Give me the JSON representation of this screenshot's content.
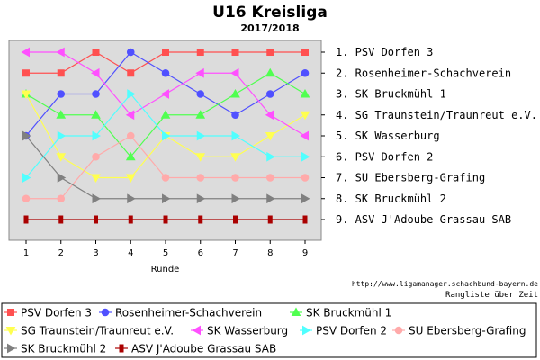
{
  "chart_data": {
    "type": "line",
    "title": "U16 Kreisliga",
    "subtitle": "2017/2018",
    "xlabel": "Runde",
    "ylabel": "",
    "x": [
      1,
      2,
      3,
      4,
      5,
      6,
      7,
      8,
      9
    ],
    "ylim": [
      1,
      9
    ],
    "y_inverted": true,
    "grid": false,
    "background": "#dcdcdc",
    "ranking": [
      "1. PSV Dorfen 3",
      "2. Rosenheimer-Schachverein",
      "3. SK Bruckmühl 1",
      "4. SG Traunstein/Traunreut e.V.",
      "5. SK Wasserburg",
      "6. PSV Dorfen 2",
      "7. SU Ebersberg-Grafing",
      "8. SK Bruckmühl  2",
      "9. ASV J'Adoube Grassau SAB"
    ],
    "source_url": "http://www.ligamanager.schachbund-bayern.de",
    "caption": "Rangliste über Zeit",
    "legend_position": "bottom",
    "series": [
      {
        "name": "PSV Dorfen 3",
        "color": "#ff5050",
        "marker": "square",
        "values": [
          2,
          2,
          1,
          2,
          1,
          1,
          1,
          1,
          1
        ]
      },
      {
        "name": "Rosenheimer-Schachverein",
        "color": "#5050ff",
        "marker": "circle",
        "values": [
          5,
          3,
          3,
          1,
          2,
          3,
          4,
          3,
          2
        ]
      },
      {
        "name": "SK Bruckmühl 1",
        "color": "#50ff50",
        "marker": "triangle-up",
        "values": [
          3,
          4,
          4,
          6,
          4,
          4,
          3,
          2,
          3
        ]
      },
      {
        "name": "SG Traunstein/Traunreut e.V.",
        "color": "#ffff50",
        "marker": "triangle-down",
        "values": [
          3,
          6,
          7,
          7,
          5,
          6,
          6,
          5,
          4
        ]
      },
      {
        "name": "SK Wasserburg",
        "color": "#ff50ff",
        "marker": "triangle-left",
        "values": [
          1,
          1,
          2,
          4,
          3,
          2,
          2,
          4,
          5
        ]
      },
      {
        "name": "PSV Dorfen 2",
        "color": "#50ffff",
        "marker": "triangle-right",
        "values": [
          7,
          5,
          5,
          3,
          5,
          5,
          5,
          6,
          6
        ]
      },
      {
        "name": "SU Ebersberg-Grafing",
        "color": "#ffaaaa",
        "marker": "circle",
        "values": [
          8,
          8,
          6,
          5,
          7,
          7,
          7,
          7,
          7
        ]
      },
      {
        "name": "SK Bruckmühl  2",
        "color": "#808080",
        "marker": "triangle-right",
        "values": [
          5,
          7,
          8,
          8,
          8,
          8,
          8,
          8,
          8
        ]
      },
      {
        "name": "ASV J'Adoube Grassau SAB",
        "color": "#aa0000",
        "marker": "tick",
        "values": [
          9,
          9,
          9,
          9,
          9,
          9,
          9,
          9,
          9
        ]
      }
    ]
  }
}
